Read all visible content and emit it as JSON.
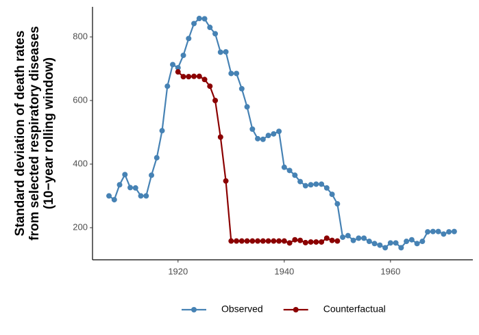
{
  "chart_data": {
    "type": "line",
    "ylabel": [
      "Standard deviation of death rates",
      "from selected respiratory diseases",
      "(10−year rolling window)"
    ],
    "x": [
      1907,
      1908,
      1909,
      1910,
      1911,
      1912,
      1913,
      1914,
      1915,
      1916,
      1917,
      1918,
      1919,
      1920,
      1921,
      1922,
      1923,
      1924,
      1925,
      1926,
      1927,
      1928,
      1929,
      1930,
      1931,
      1932,
      1933,
      1934,
      1935,
      1936,
      1937,
      1938,
      1939,
      1940,
      1941,
      1942,
      1943,
      1944,
      1945,
      1946,
      1947,
      1948,
      1949,
      1950,
      1951,
      1952,
      1953,
      1954,
      1955,
      1956,
      1957,
      1958,
      1959,
      1960,
      1961,
      1962,
      1963,
      1964,
      1965,
      1966,
      1967,
      1968,
      1969,
      1970,
      1971,
      1972
    ],
    "series": [
      {
        "name": "Observed",
        "color": "#4682b4",
        "values": [
          300,
          288,
          335,
          367,
          326,
          325,
          300,
          300,
          365,
          420,
          505,
          645,
          713,
          703,
          742,
          795,
          842,
          858,
          857,
          830,
          810,
          752,
          753,
          685,
          685,
          637,
          580,
          510,
          480,
          478,
          490,
          495,
          503,
          390,
          380,
          365,
          345,
          332,
          335,
          337,
          337,
          325,
          305,
          275,
          170,
          175,
          160,
          167,
          167,
          157,
          150,
          145,
          137,
          152,
          152,
          137,
          157,
          162,
          150,
          157,
          187,
          188,
          188,
          180,
          187,
          188
        ]
      },
      {
        "name": "Counterfactual",
        "color": "#8b0000",
        "values": [
          null,
          null,
          null,
          null,
          null,
          null,
          null,
          null,
          null,
          null,
          null,
          null,
          null,
          690,
          675,
          675,
          676,
          676,
          666,
          645,
          600,
          485,
          347,
          158,
          158,
          158,
          158,
          158,
          158,
          158,
          158,
          158,
          158,
          158,
          152,
          162,
          160,
          153,
          155,
          155,
          155,
          167,
          160,
          158,
          null,
          null,
          null,
          null,
          null,
          null,
          null,
          null,
          null,
          null,
          null,
          null,
          null,
          null,
          null,
          null,
          null,
          null,
          null,
          null,
          null,
          null
        ]
      }
    ],
    "xlim": [
      1903.9,
      1975.5
    ],
    "ylim": [
      99,
      894.6
    ],
    "xticks": [
      1920,
      1940,
      1960
    ],
    "yticks": [
      200,
      400,
      600,
      800
    ],
    "grid": false,
    "legend": "bottom"
  }
}
